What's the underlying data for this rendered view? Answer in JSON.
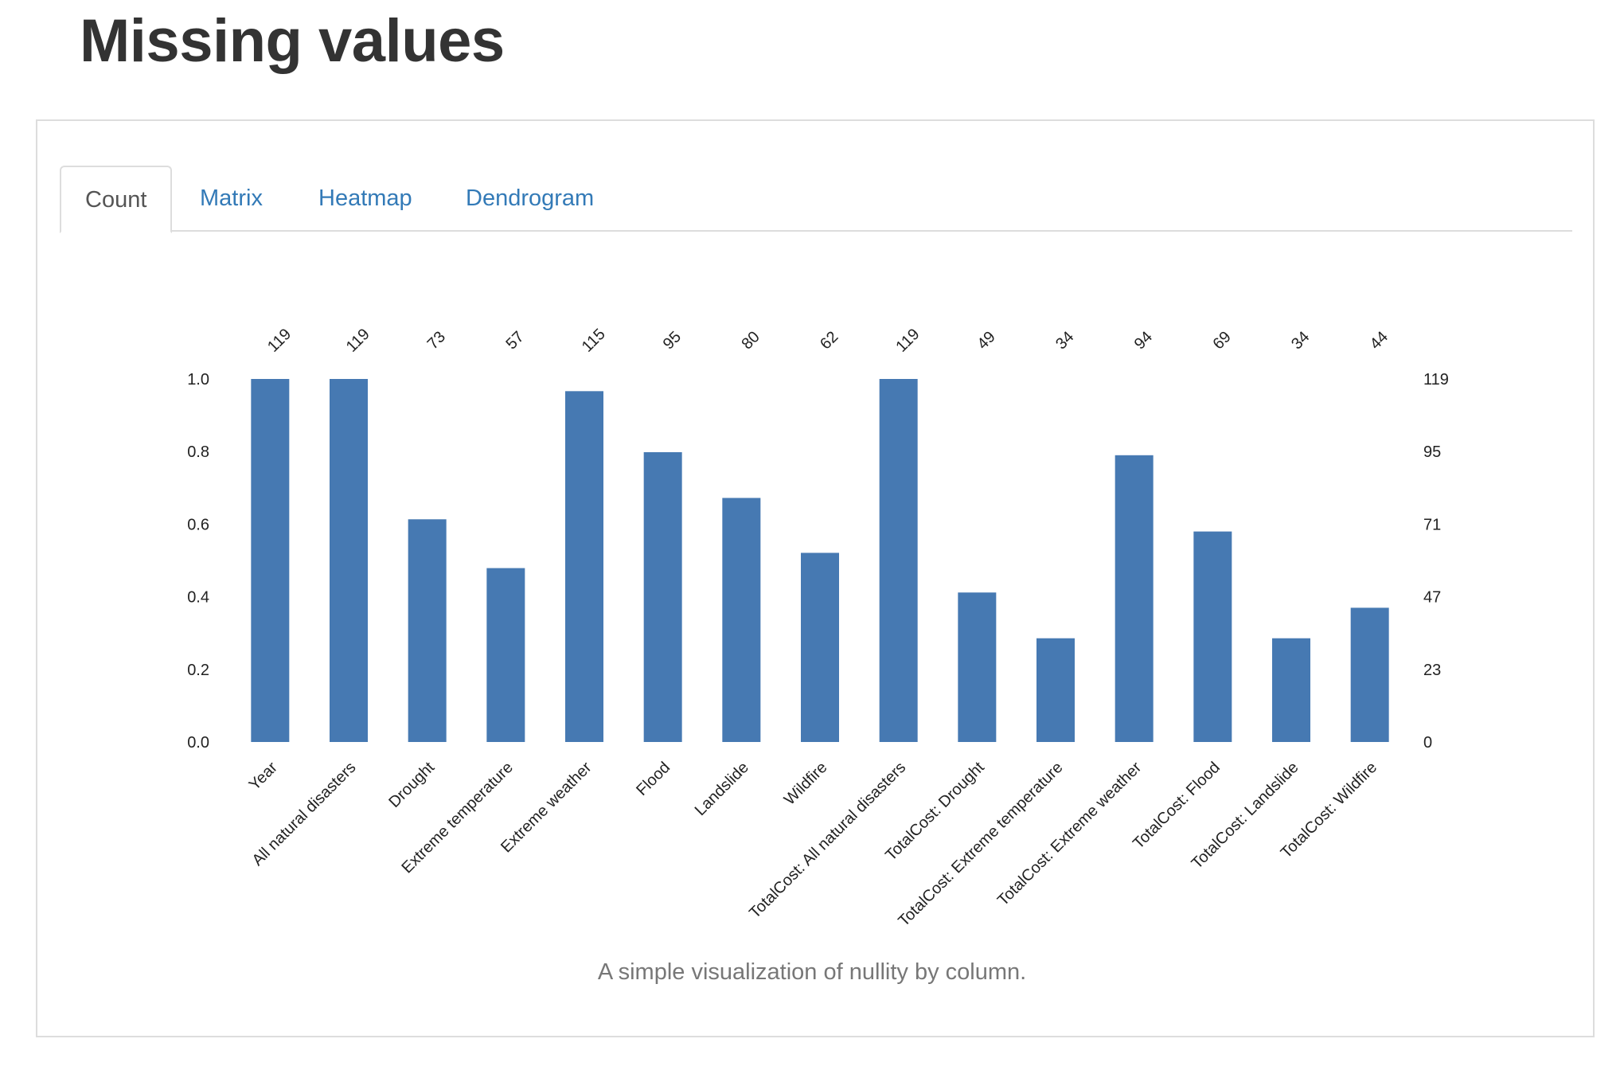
{
  "page": {
    "title": "Missing values"
  },
  "tabs": [
    {
      "label": "Count",
      "active": true
    },
    {
      "label": "Matrix",
      "active": false
    },
    {
      "label": "Heatmap",
      "active": false
    },
    {
      "label": "Dendrogram",
      "active": false
    }
  ],
  "caption": "A simple visualization of nullity by column.",
  "colors": {
    "bar": "#4679b2",
    "link": "#337ab7"
  },
  "chart_data": {
    "type": "bar",
    "categories": [
      "Year",
      "All natural disasters",
      "Drought",
      "Extreme temperature",
      "Extreme weather",
      "Flood",
      "Landslide",
      "Wildfire",
      "TotalCost: All natural disasters",
      "TotalCost: Drought",
      "TotalCost: Extreme temperature",
      "TotalCost: Extreme weather",
      "TotalCost: Flood",
      "TotalCost: Landslide",
      "TotalCost: Wildfire"
    ],
    "counts": [
      119,
      119,
      73,
      57,
      115,
      95,
      80,
      62,
      119,
      49,
      34,
      94,
      69,
      34,
      44
    ],
    "total": 119,
    "ylim": [
      0,
      1
    ],
    "left_ticks": [
      "0.0",
      "0.2",
      "0.4",
      "0.6",
      "0.8",
      "1.0"
    ],
    "right_ticks": [
      "0",
      "23",
      "47",
      "71",
      "95",
      "119"
    ],
    "grid": false
  }
}
